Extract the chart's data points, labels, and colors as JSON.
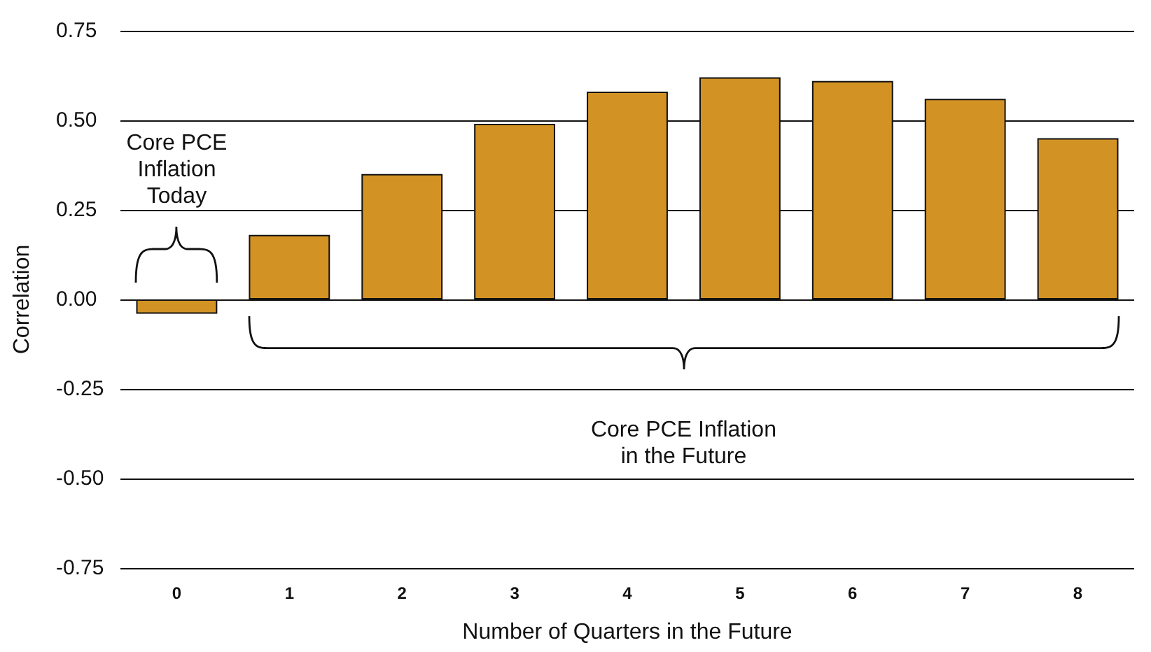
{
  "chart_data": {
    "type": "bar",
    "xlabel": "Number of Quarters in the Future",
    "ylabel": "Correlation",
    "categories": [
      "0",
      "1",
      "2",
      "3",
      "4",
      "5",
      "6",
      "7",
      "8"
    ],
    "values": [
      -0.04,
      0.18,
      0.35,
      0.49,
      0.58,
      0.62,
      0.61,
      0.56,
      0.45
    ],
    "color": "#d39324",
    "ylim": [
      -0.75,
      0.75
    ],
    "yticks": [
      -0.75,
      {
        "value": -0.5,
        "label": "-0.50"
      },
      -0.25,
      {
        "value": 0,
        "label": "0.00"
      },
      0.25,
      {
        "value": 0.5,
        "label": "0.50"
      },
      0.75
    ],
    "grid": "y",
    "annotations": [
      "Core PCE\nInflation\nToday",
      "Core PCE Inflation\nin the Future"
    ]
  }
}
